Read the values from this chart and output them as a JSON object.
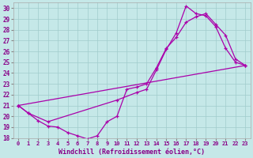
{
  "xlabel": "Windchill (Refroidissement éolien,°C)",
  "xlim": [
    -0.5,
    23.5
  ],
  "ylim": [
    18,
    30.5
  ],
  "xticks": [
    0,
    1,
    2,
    3,
    4,
    5,
    6,
    7,
    8,
    9,
    10,
    11,
    12,
    13,
    14,
    15,
    16,
    17,
    18,
    19,
    20,
    21,
    22,
    23
  ],
  "yticks": [
    18,
    19,
    20,
    21,
    22,
    23,
    24,
    25,
    26,
    27,
    28,
    29,
    30
  ],
  "background_color": "#c5e8e8",
  "grid_color": "#a0cccc",
  "line_color": "#aa00aa",
  "line1_x": [
    0,
    1,
    2,
    3,
    4,
    5,
    6,
    7,
    8,
    9,
    10,
    11,
    12,
    13,
    14,
    15,
    16,
    17,
    18,
    19,
    20,
    21,
    22,
    23
  ],
  "line1_y": [
    21.0,
    20.3,
    19.6,
    19.1,
    19.0,
    18.5,
    18.2,
    17.9,
    18.2,
    19.5,
    20.0,
    22.5,
    22.7,
    23.0,
    24.5,
    26.3,
    27.3,
    28.7,
    29.2,
    29.5,
    28.5,
    27.5,
    25.3,
    24.7
  ],
  "line2_x": [
    0,
    1,
    3,
    10,
    12,
    13,
    14,
    15,
    16,
    17,
    18,
    19,
    20,
    21,
    22,
    23
  ],
  "line2_y": [
    21.0,
    20.3,
    19.5,
    21.5,
    22.2,
    22.5,
    24.3,
    26.2,
    27.7,
    30.2,
    29.5,
    29.3,
    28.3,
    26.3,
    25.0,
    24.7
  ],
  "line3_x": [
    0,
    23
  ],
  "line3_y": [
    21.0,
    24.7
  ]
}
